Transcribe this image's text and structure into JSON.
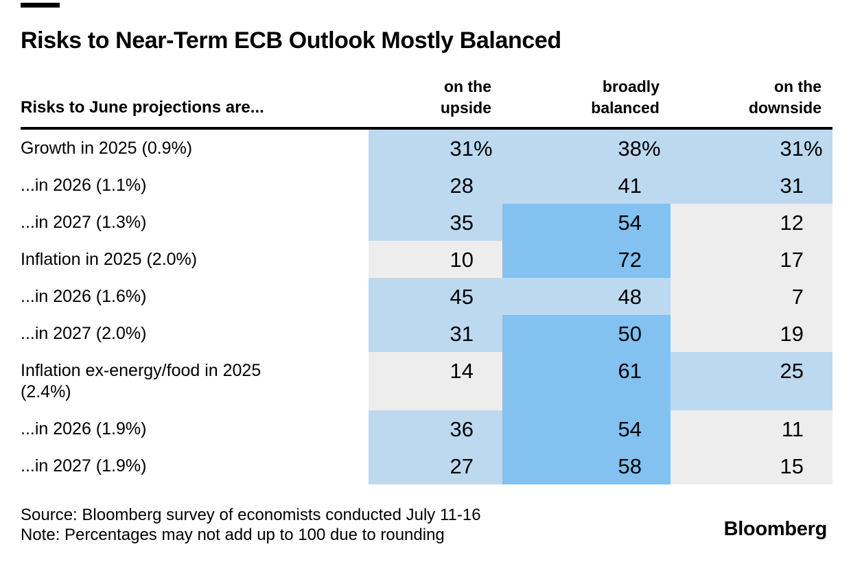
{
  "chart_data": {
    "type": "heatmap",
    "title": "Risks to Near-Term ECB Outlook Mostly Balanced",
    "row_header": "Risks to June projections are...",
    "column_headers": [
      {
        "name": "on the upside",
        "line1": "on the",
        "line2": "upside"
      },
      {
        "name": "broadly balanced",
        "line1": "broadly",
        "line2": "balanced"
      },
      {
        "name": "on the downside",
        "line1": "on the",
        "line2": "downside"
      }
    ],
    "rows": [
      {
        "label": "Growth in 2025 (0.9%)",
        "values": [
          31,
          38,
          31
        ],
        "unit": "%"
      },
      {
        "label": "...in 2026 (1.1%)",
        "values": [
          28,
          41,
          31
        ],
        "unit": ""
      },
      {
        "label": "...in 2027 (1.3%)",
        "values": [
          35,
          54,
          12
        ],
        "unit": ""
      },
      {
        "label": "Inflation in 2025 (2.0%)",
        "values": [
          10,
          72,
          17
        ],
        "unit": ""
      },
      {
        "label": "...in 2026 (1.6%)",
        "values": [
          45,
          48,
          7
        ],
        "unit": ""
      },
      {
        "label": "...in 2027 (2.0%)",
        "values": [
          31,
          50,
          19
        ],
        "unit": ""
      },
      {
        "label": "Inflation ex-energy/food in 2025 (2.4%)",
        "values": [
          14,
          61,
          25
        ],
        "unit": ""
      },
      {
        "label": "...in 2026 (1.9%)",
        "values": [
          36,
          54,
          11
        ],
        "unit": ""
      },
      {
        "label": "...in 2027 (1.9%)",
        "values": [
          27,
          58,
          15
        ],
        "unit": ""
      }
    ],
    "values_are_percent_of_respondents": true,
    "color_rule": {
      "high_from": 50,
      "mid_from": 20
    },
    "source": "Source: Bloomberg survey of economists conducted July 11-16",
    "note": "Note: Percentages may not add up to 100 due to rounding"
  },
  "palette": {
    "cell_high": "#82c1f0",
    "cell_mid": "#bdd9f0",
    "cell_low": "#ededed",
    "rule": "#000000",
    "text": "#000000",
    "background": "#ffffff"
  },
  "branding": {
    "logo": "Bloomberg"
  }
}
